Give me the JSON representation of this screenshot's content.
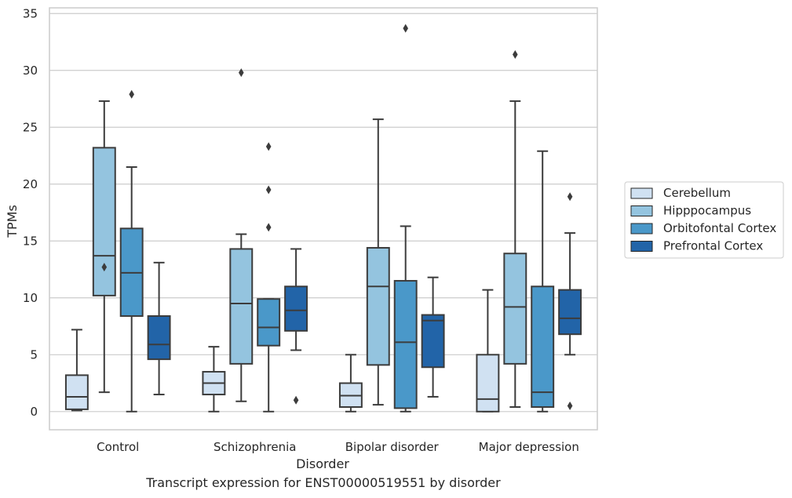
{
  "caption": "Transcript expression for ENST00000519551 by disorder",
  "chart_data": {
    "type": "box",
    "title": "",
    "xlabel": "Disorder",
    "ylabel": "TPMs",
    "ylim": [
      -1.6,
      35.5
    ],
    "yticks": [
      0,
      5,
      10,
      15,
      20,
      25,
      30,
      35
    ],
    "categories": [
      "Control",
      "Schizophrenia",
      "Bipolar disorder",
      "Major depression"
    ],
    "grid": "horizontal",
    "legend_position": "right",
    "series": [
      {
        "name": "Cerebellum",
        "color": "#d0e1f2",
        "boxes": [
          {
            "whislo": 0.1,
            "q1": 0.2,
            "med": 1.3,
            "q3": 3.2,
            "whishi": 7.2,
            "fliers": []
          },
          {
            "whislo": 0.0,
            "q1": 1.5,
            "med": 2.5,
            "q3": 3.5,
            "whishi": 5.7,
            "fliers": []
          },
          {
            "whislo": 0.0,
            "q1": 0.4,
            "med": 1.4,
            "q3": 2.5,
            "whishi": 5.0,
            "fliers": []
          },
          {
            "whislo": 0.0,
            "q1": 0.0,
            "med": 1.1,
            "q3": 5.0,
            "whishi": 10.7,
            "fliers": []
          }
        ]
      },
      {
        "name": "Hipppocampus",
        "color": "#94c4df",
        "boxes": [
          {
            "whislo": 1.7,
            "q1": 10.2,
            "med": 13.7,
            "q3": 23.2,
            "whishi": 27.3,
            "fliers": [
              12.7
            ]
          },
          {
            "whislo": 0.9,
            "q1": 4.2,
            "med": 9.5,
            "q3": 14.3,
            "whishi": 15.6,
            "fliers": [
              29.8
            ]
          },
          {
            "whislo": 0.6,
            "q1": 4.1,
            "med": 11.0,
            "q3": 14.4,
            "whishi": 25.7,
            "fliers": []
          },
          {
            "whislo": 0.4,
            "q1": 4.2,
            "med": 9.2,
            "q3": 13.9,
            "whishi": 27.3,
            "fliers": [
              31.4
            ]
          }
        ]
      },
      {
        "name": "Orbitofontal Cortex",
        "color": "#4a98c9",
        "boxes": [
          {
            "whislo": 0.0,
            "q1": 8.4,
            "med": 12.2,
            "q3": 16.1,
            "whishi": 21.5,
            "fliers": [
              27.9
            ]
          },
          {
            "whislo": 0.0,
            "q1": 5.8,
            "med": 7.4,
            "q3": 9.9,
            "whishi": 9.9,
            "fliers": [
              16.2,
              19.5,
              23.3
            ]
          },
          {
            "whislo": 0.0,
            "q1": 0.3,
            "med": 6.1,
            "q3": 11.5,
            "whishi": 16.3,
            "fliers": [
              33.7
            ]
          },
          {
            "whislo": 0.0,
            "q1": 0.4,
            "med": 1.7,
            "q3": 11.0,
            "whishi": 22.9,
            "fliers": []
          }
        ]
      },
      {
        "name": "Prefrontal Cortex",
        "color": "#2264a8",
        "boxes": [
          {
            "whislo": 1.5,
            "q1": 4.6,
            "med": 5.9,
            "q3": 8.4,
            "whishi": 13.1,
            "fliers": []
          },
          {
            "whislo": 5.4,
            "q1": 7.1,
            "med": 8.9,
            "q3": 11.0,
            "whishi": 14.3,
            "fliers": [
              1.0
            ]
          },
          {
            "whislo": 1.3,
            "q1": 3.9,
            "med": 8.0,
            "q3": 8.5,
            "whishi": 11.8,
            "fliers": []
          },
          {
            "whislo": 5.0,
            "q1": 6.8,
            "med": 8.2,
            "q3": 10.7,
            "whishi": 15.7,
            "fliers": [
              18.9,
              0.5
            ]
          }
        ]
      }
    ]
  }
}
